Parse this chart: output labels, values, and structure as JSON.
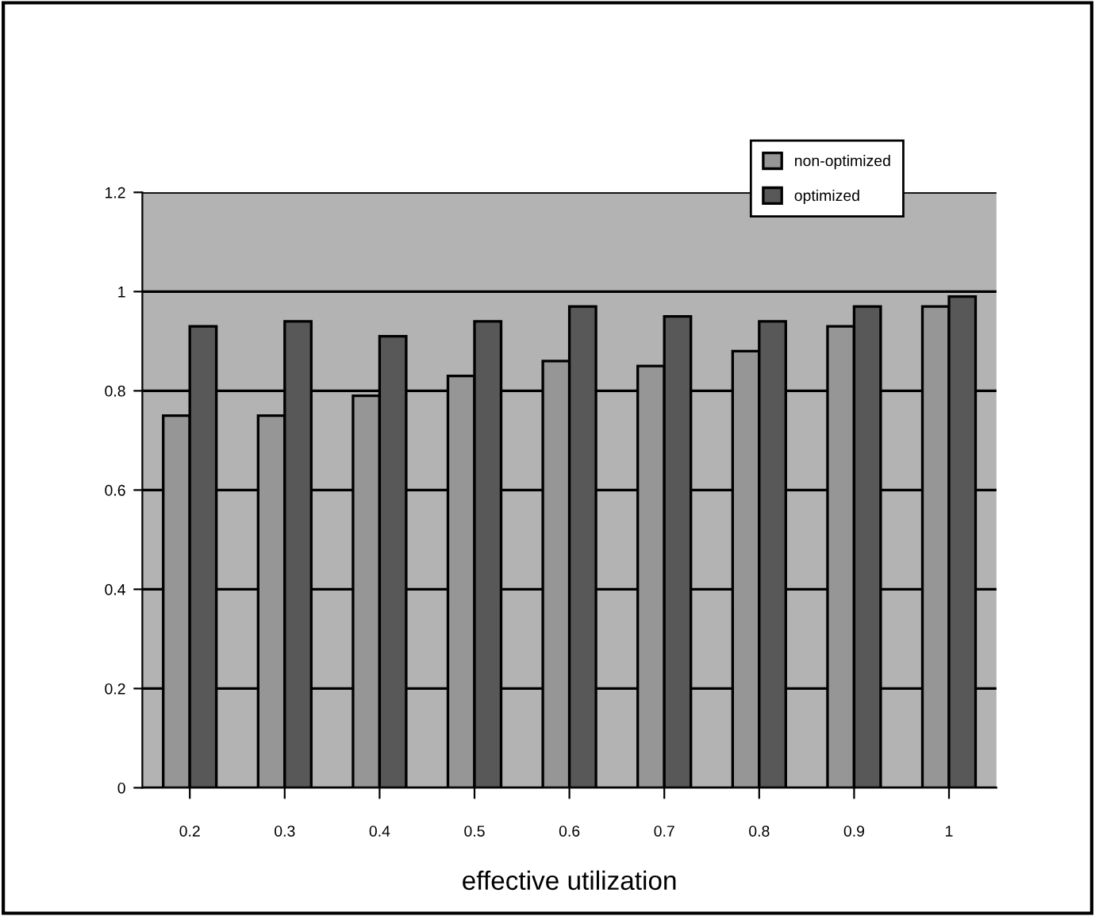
{
  "chart_data": {
    "type": "bar",
    "xlabel": "effective utilization",
    "categories": [
      "0.2",
      "0.3",
      "0.4",
      "0.5",
      "0.6",
      "0.7",
      "0.8",
      "0.9",
      "1"
    ],
    "series": [
      {
        "name": "non-optimized",
        "color": "#969696",
        "values": [
          0.75,
          0.75,
          0.79,
          0.83,
          0.86,
          0.85,
          0.88,
          0.93,
          0.97
        ]
      },
      {
        "name": "optimized",
        "color": "#585858",
        "values": [
          0.93,
          0.94,
          0.91,
          0.94,
          0.97,
          0.95,
          0.94,
          0.97,
          0.99
        ]
      }
    ],
    "ylim": [
      0,
      1.2
    ],
    "yticks": [
      0,
      0.2,
      0.4,
      0.6,
      0.8,
      1,
      1.2
    ],
    "grid": "y",
    "legend": "top right"
  }
}
